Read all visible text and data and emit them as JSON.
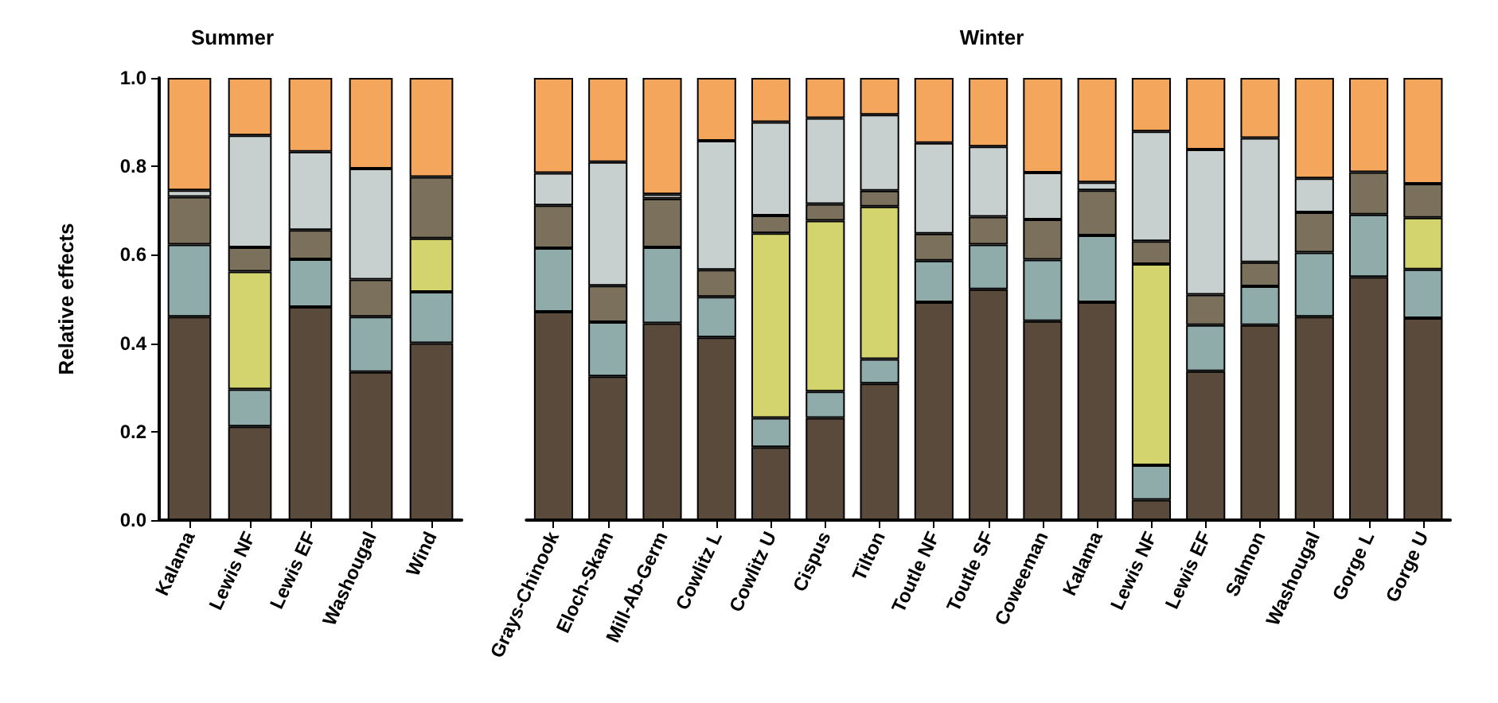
{
  "chart_data": [
    {
      "type": "bar",
      "title": "Summer",
      "ylabel": "Relative effects",
      "stacked": true,
      "categories": [
        "Kalama",
        "Lewis NF",
        "Lewis EF",
        "Washougal",
        "Wind"
      ],
      "ylim": [
        0,
        1
      ],
      "yticks": [
        {
          "value": 0,
          "label": "0.0"
        },
        0.2,
        0.4,
        0.6,
        0.8,
        {
          "value": 1,
          "label": "1.0"
        }
      ],
      "series": [
        {
          "color": "#5a4a3c",
          "values": [
            0.46,
            0.212,
            0.482,
            0.335,
            0.4
          ]
        },
        {
          "color": "#8fabaa",
          "values": [
            0.163,
            0.084,
            0.108,
            0.125,
            0.116
          ]
        },
        {
          "color": "#d4d46e",
          "values": [
            null,
            0.266,
            null,
            null,
            0.121
          ]
        },
        {
          "color": "#7b705c",
          "values": [
            0.108,
            0.055,
            0.066,
            0.084,
            0.139
          ]
        },
        {
          "color": "#c8d0cf",
          "values": [
            0.015,
            0.253,
            0.177,
            0.251,
            null
          ]
        },
        {
          "color": "#f4a65c",
          "values": [
            0.254,
            0.13,
            0.167,
            0.205,
            0.224
          ]
        }
      ]
    },
    {
      "type": "bar",
      "title": "Winter",
      "stacked": true,
      "tick_labels": "x",
      "categories": [
        "Grays-Chinook",
        "Eloch-Skam",
        "Mill-Ab-Germ",
        "Cowlitz L",
        "Cowlitz U",
        "Cispus",
        "Tilton",
        "Toutle NF",
        "Toutle SF",
        "Coweeman",
        "Kalama",
        "Lewis NF",
        "Lewis EF",
        "Salmon",
        "Washougal",
        "Gorge L",
        "Gorge U"
      ],
      "ylim": [
        0,
        1
      ],
      "series": [
        {
          "color": "#5a4a3c",
          "values": [
            0.471,
            0.325,
            0.445,
            0.413,
            0.165,
            0.231,
            0.309,
            0.493,
            0.522,
            0.45,
            0.493,
            0.046,
            0.337,
            0.441,
            0.46,
            0.55,
            0.457
          ]
        },
        {
          "color": "#8fabaa",
          "values": [
            0.144,
            0.123,
            0.172,
            0.092,
            0.066,
            0.06,
            0.055,
            0.094,
            0.101,
            0.139,
            0.151,
            0.078,
            0.104,
            0.088,
            0.145,
            0.141,
            0.11
          ]
        },
        {
          "color": "#d4d46e",
          "values": [
            null,
            null,
            null,
            null,
            0.418,
            0.386,
            0.345,
            null,
            null,
            null,
            null,
            0.455,
            null,
            null,
            null,
            null,
            0.117
          ]
        },
        {
          "color": "#7b705c",
          "values": [
            0.097,
            0.082,
            0.11,
            0.061,
            0.04,
            0.038,
            0.036,
            0.061,
            0.063,
            0.091,
            0.102,
            0.052,
            0.069,
            0.054,
            0.091,
            0.096,
            0.077
          ]
        },
        {
          "color": "#c8d0cf",
          "values": [
            0.073,
            0.28,
            0.01,
            0.292,
            0.211,
            0.194,
            0.172,
            0.205,
            0.159,
            0.106,
            0.018,
            0.248,
            0.328,
            0.281,
            0.077,
            null,
            null
          ]
        },
        {
          "color": "#f4a65c",
          "values": [
            0.215,
            0.19,
            0.263,
            0.142,
            0.1,
            0.091,
            0.083,
            0.147,
            0.155,
            0.214,
            0.236,
            0.121,
            0.162,
            0.136,
            0.227,
            0.213,
            0.239
          ]
        }
      ]
    }
  ]
}
